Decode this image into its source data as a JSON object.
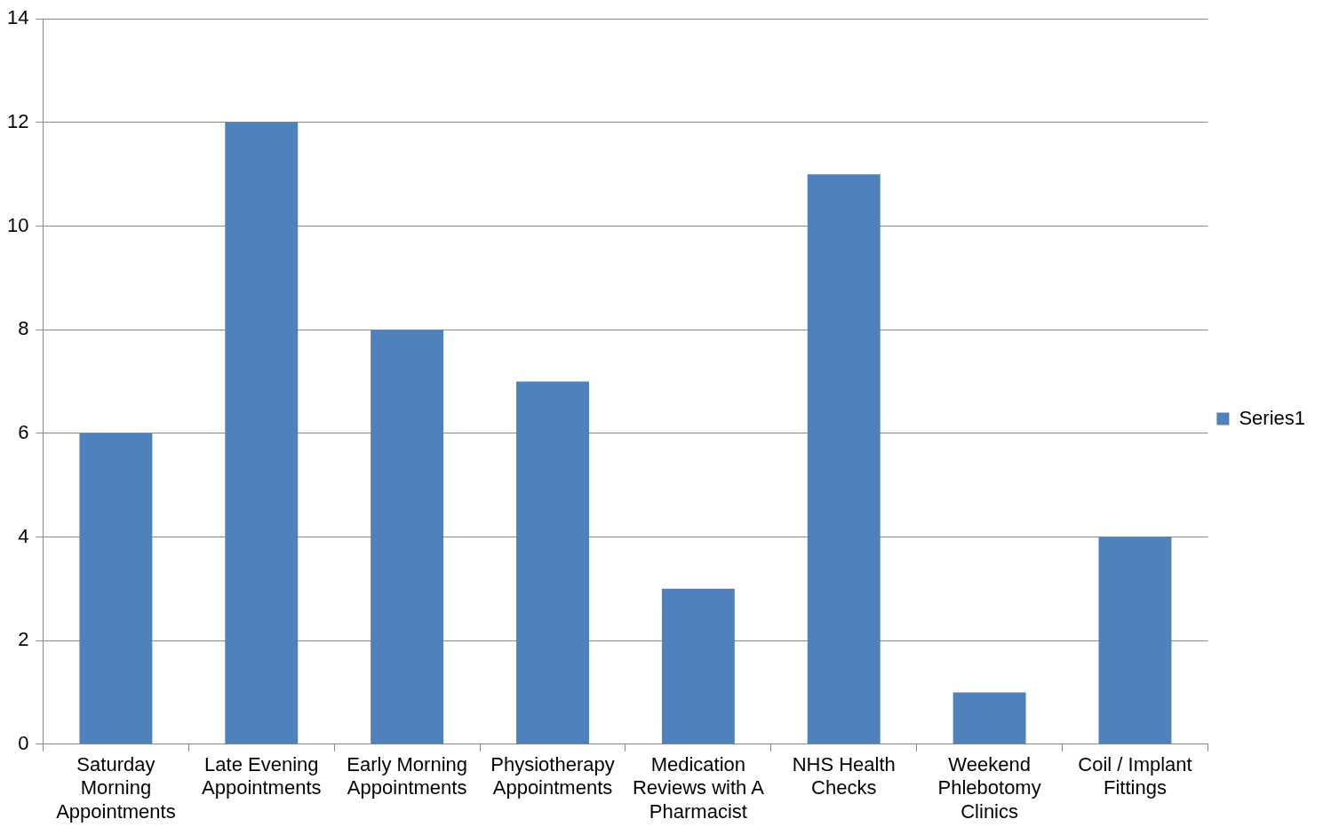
{
  "chart_data": {
    "type": "bar",
    "categories": [
      "Saturday Morning Appointments",
      "Late Evening Appointments",
      "Early Morning Appointments",
      "Physiotherapy Appointments",
      "Medication Reviews with A Pharmacist",
      "NHS Health Checks",
      "Weekend Phlebotomy Clinics",
      "Coil / Implant Fittings"
    ],
    "series": [
      {
        "name": "Series1",
        "color": "#4f81bd",
        "values": [
          6,
          12,
          8,
          7,
          3,
          11,
          1,
          4
        ]
      }
    ],
    "ylim": [
      0,
      14
    ],
    "yticks": [
      0,
      2,
      4,
      6,
      8,
      10,
      12,
      14
    ],
    "grid": "y",
    "legend": "right"
  }
}
